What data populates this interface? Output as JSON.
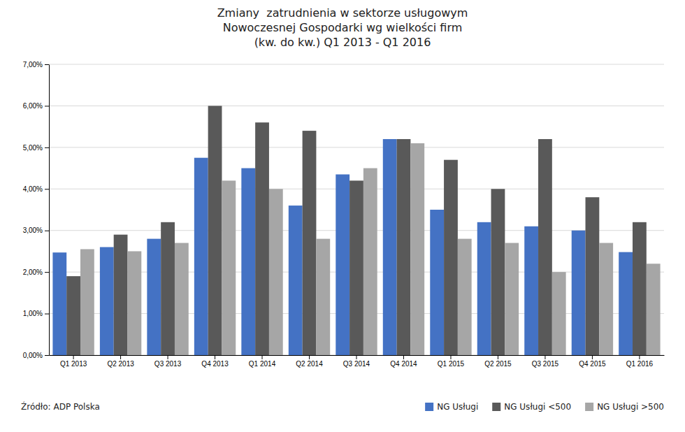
{
  "chart_data": {
    "type": "bar",
    "title": "Zmiany  zatrudnienia w sektorze usługowym\nNowoczesnej Gospodarki wg wielkości firm\n(kw. do kw.) Q1 2013 - Q1 2016",
    "categories": [
      "Q1 2013",
      "Q2 2013",
      "Q3 2013",
      "Q4 2013",
      "Q1 2014",
      "Q2 2014",
      "Q3 2014",
      "Q4 2014",
      "Q1 2015",
      "Q2 2015",
      "Q3 2015",
      "Q4 2015",
      "Q1 2016"
    ],
    "series": [
      {
        "name": "NG Usługi",
        "color": "#4472C4",
        "values": [
          0.0247,
          0.026,
          0.028,
          0.0475,
          0.045,
          0.036,
          0.0435,
          0.052,
          0.035,
          0.032,
          0.031,
          0.03,
          0.0248
        ]
      },
      {
        "name": "NG Usługi <500",
        "color": "#595959",
        "values": [
          0.019,
          0.029,
          0.032,
          0.06,
          0.056,
          0.054,
          0.042,
          0.052,
          0.047,
          0.04,
          0.052,
          0.038,
          0.032
        ]
      },
      {
        "name": "NG Usługi >500",
        "color": "#A6A6A6",
        "values": [
          0.0255,
          0.025,
          0.027,
          0.042,
          0.04,
          0.028,
          0.045,
          0.051,
          0.028,
          0.027,
          0.02,
          0.027,
          0.022
        ]
      }
    ],
    "ylim": [
      0,
      0.07
    ],
    "yticks": [
      {
        "value": 0.0,
        "label": "0,00%"
      },
      {
        "value": 0.01,
        "label": "1,00%"
      },
      {
        "value": 0.02,
        "label": "2,00%"
      },
      {
        "value": 0.03,
        "label": "3,00%"
      },
      {
        "value": 0.04,
        "label": "4,00%"
      },
      {
        "value": 0.05,
        "label": "5,00%"
      },
      {
        "value": 0.06,
        "label": "6,00%"
      },
      {
        "value": 0.07,
        "label": "7,00%"
      }
    ],
    "grid": true,
    "legend": "lower right",
    "annotations": [
      "Źródło: ADP Polska"
    ]
  }
}
